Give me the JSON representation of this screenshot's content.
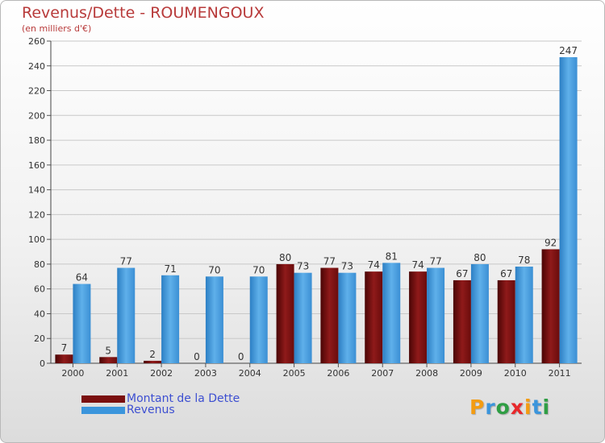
{
  "header": {
    "title": "Revenus/Dette - ROUMENGOUX",
    "subtitle": "(en milliers d'€)"
  },
  "legend": [
    {
      "label": "Montant de la Dette",
      "color": "#7a0f0f"
    },
    {
      "label": "Revenus",
      "color": "#3b95dc"
    }
  ],
  "brand": {
    "text": "Proxiti",
    "letters": [
      "P",
      "r",
      "o",
      "x",
      "i",
      "t",
      "i"
    ],
    "colors": [
      "#f39c12",
      "#3b95dc",
      "#2f9e44",
      "#e8282b",
      "#f39c12",
      "#3b95dc",
      "#2f9e44"
    ]
  },
  "chart_data": {
    "type": "bar",
    "title": "Revenus/Dette - ROUMENGOUX",
    "ylabel": "(en milliers d'€)",
    "xlabel": "",
    "categories": [
      "2000",
      "2001",
      "2002",
      "2003",
      "2004",
      "2005",
      "2006",
      "2007",
      "2008",
      "2009",
      "2010",
      "2011"
    ],
    "series": [
      {
        "name": "Montant de la Dette",
        "color": "#7a0f0f",
        "values": [
          7,
          5,
          2,
          0,
          0,
          80,
          77,
          74,
          74,
          67,
          67,
          92
        ]
      },
      {
        "name": "Revenus",
        "color": "#3b95dc",
        "values": [
          64,
          77,
          71,
          70,
          70,
          73,
          73,
          81,
          77,
          80,
          78,
          247
        ]
      }
    ],
    "ylim": [
      0,
      260
    ],
    "yticks": [
      0,
      20,
      40,
      60,
      80,
      100,
      120,
      140,
      160,
      180,
      200,
      220,
      240,
      260
    ],
    "grid": true,
    "legend_position": "bottom-left"
  }
}
